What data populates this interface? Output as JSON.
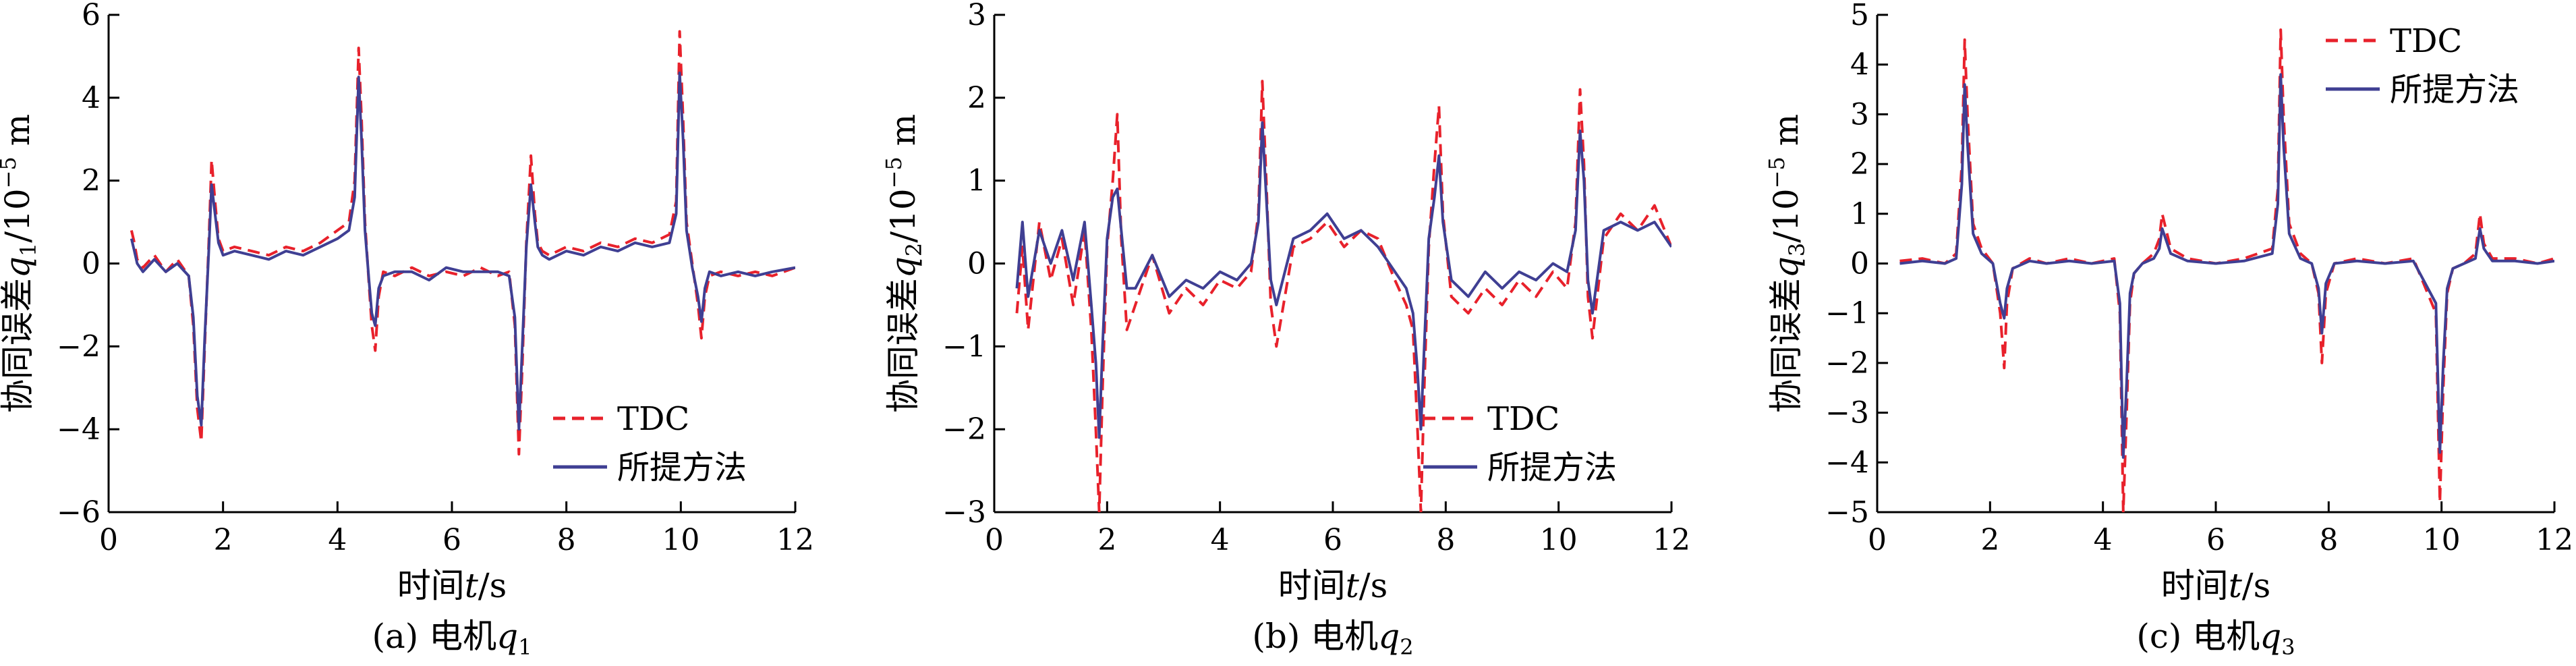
{
  "chart_data": [
    {
      "type": "line",
      "ylabel_main": "协同误差",
      "ylabel_var": "q",
      "ylabel_sub": "1",
      "ylabel_unit": "/10",
      "ylabel_exp": "−5",
      "ylabel_tail": " m",
      "xlabel_main": "时间",
      "xlabel_var": "t",
      "xlabel_unit": "/s",
      "caption_prefix": "(a) 电机",
      "caption_var": "q",
      "caption_sub": "1",
      "xlim": [
        0,
        12
      ],
      "ylim": [
        -6,
        6
      ],
      "xticks": [
        0,
        2,
        4,
        6,
        8,
        10,
        12
      ],
      "yticks": [
        -6,
        -4,
        -2,
        0,
        2,
        4,
        6
      ],
      "xtick_labels": [
        "0",
        "2",
        "4",
        "6",
        "8",
        "10",
        "12"
      ],
      "ytick_labels": [
        "−6",
        "−4",
        "−2",
        "0",
        "2",
        "4",
        "6"
      ],
      "legend_position": "bottom-right",
      "series": [
        {
          "name": "TDC",
          "color": "#e8212b",
          "dash": "dashed",
          "x": [
            0.4,
            0.45,
            0.5,
            0.6,
            0.8,
            1.0,
            1.2,
            1.4,
            1.48,
            1.55,
            1.62,
            1.68,
            1.75,
            1.8,
            1.86,
            1.92,
            2.0,
            2.2,
            2.5,
            2.8,
            3.1,
            3.4,
            3.7,
            4.0,
            4.2,
            4.3,
            4.37,
            4.42,
            4.48,
            4.55,
            4.6,
            4.66,
            4.72,
            4.8,
            5.0,
            5.3,
            5.6,
            5.9,
            6.2,
            6.5,
            6.8,
            7.0,
            7.1,
            7.17,
            7.23,
            7.3,
            7.38,
            7.45,
            7.5,
            7.58,
            7.7,
            8.0,
            8.3,
            8.6,
            8.9,
            9.2,
            9.5,
            9.8,
            9.92,
            9.98,
            10.04,
            10.1,
            10.2,
            10.3,
            10.36,
            10.42,
            10.5,
            10.7,
            11.0,
            11.3,
            11.6,
            12.0
          ],
          "y": [
            0.8,
            0.5,
            0.1,
            -0.1,
            0.2,
            -0.2,
            0.1,
            -0.3,
            -1.5,
            -3.5,
            -4.3,
            -2.0,
            0.5,
            2.5,
            1.5,
            0.6,
            0.3,
            0.4,
            0.3,
            0.2,
            0.4,
            0.3,
            0.5,
            0.8,
            1.0,
            2.0,
            5.2,
            3.5,
            1.0,
            -0.5,
            -1.5,
            -2.1,
            -0.8,
            -0.2,
            -0.3,
            -0.1,
            -0.3,
            -0.2,
            -0.3,
            -0.1,
            -0.3,
            -0.2,
            -1.5,
            -4.6,
            -2.5,
            0.5,
            2.6,
            1.2,
            0.5,
            0.3,
            0.2,
            0.4,
            0.3,
            0.5,
            0.4,
            0.6,
            0.5,
            0.7,
            1.5,
            5.6,
            3.5,
            1.0,
            0.0,
            -1.0,
            -1.8,
            -0.8,
            -0.3,
            -0.2,
            -0.3,
            -0.2,
            -0.3,
            -0.1
          ]
        },
        {
          "name": "所提方法",
          "color": "#3f3f93",
          "dash": "solid",
          "x": [
            0.4,
            0.45,
            0.5,
            0.6,
            0.8,
            1.0,
            1.2,
            1.4,
            1.48,
            1.55,
            1.62,
            1.68,
            1.75,
            1.8,
            1.86,
            1.92,
            2.0,
            2.2,
            2.5,
            2.8,
            3.1,
            3.4,
            3.7,
            4.0,
            4.2,
            4.3,
            4.37,
            4.42,
            4.48,
            4.55,
            4.6,
            4.66,
            4.72,
            4.8,
            5.0,
            5.3,
            5.6,
            5.9,
            6.2,
            6.5,
            6.8,
            7.0,
            7.1,
            7.17,
            7.23,
            7.3,
            7.38,
            7.45,
            7.5,
            7.58,
            7.7,
            8.0,
            8.3,
            8.6,
            8.9,
            9.2,
            9.5,
            9.8,
            9.92,
            9.98,
            10.04,
            10.1,
            10.2,
            10.3,
            10.36,
            10.42,
            10.5,
            10.7,
            11.0,
            11.3,
            11.6,
            12.0
          ],
          "y": [
            0.6,
            0.3,
            0.0,
            -0.2,
            0.1,
            -0.2,
            0.0,
            -0.3,
            -1.3,
            -3.2,
            -3.9,
            -1.8,
            0.3,
            1.9,
            1.2,
            0.5,
            0.2,
            0.3,
            0.2,
            0.1,
            0.3,
            0.2,
            0.4,
            0.6,
            0.8,
            1.6,
            4.5,
            3.0,
            0.8,
            -0.4,
            -1.2,
            -1.5,
            -0.6,
            -0.3,
            -0.2,
            -0.2,
            -0.4,
            -0.1,
            -0.2,
            -0.2,
            -0.2,
            -0.3,
            -1.3,
            -4.0,
            -2.0,
            0.4,
            1.9,
            1.0,
            0.4,
            0.2,
            0.1,
            0.3,
            0.2,
            0.4,
            0.3,
            0.5,
            0.4,
            0.5,
            1.2,
            4.6,
            3.0,
            0.8,
            -0.1,
            -0.8,
            -1.4,
            -0.6,
            -0.2,
            -0.3,
            -0.2,
            -0.3,
            -0.2,
            -0.1
          ]
        }
      ]
    },
    {
      "type": "line",
      "ylabel_main": "协同误差",
      "ylabel_var": "q",
      "ylabel_sub": "2",
      "ylabel_unit": "/10",
      "ylabel_exp": "−5",
      "ylabel_tail": " m",
      "xlabel_main": "时间",
      "xlabel_var": "t",
      "xlabel_unit": "/s",
      "caption_prefix": "(b) 电机",
      "caption_var": "q",
      "caption_sub": "2",
      "xlim": [
        0,
        12
      ],
      "ylim": [
        -3,
        3
      ],
      "xticks": [
        0,
        2,
        4,
        6,
        8,
        10,
        12
      ],
      "yticks": [
        -3,
        -2,
        -1,
        0,
        1,
        2,
        3
      ],
      "xtick_labels": [
        "0",
        "2",
        "4",
        "6",
        "8",
        "10",
        "12"
      ],
      "ytick_labels": [
        "−3",
        "−2",
        "−1",
        "0",
        "1",
        "2",
        "3"
      ],
      "legend_position": "bottom-right",
      "series": [
        {
          "name": "TDC",
          "color": "#e8212b",
          "dash": "dashed",
          "x": [
            0.4,
            0.5,
            0.6,
            0.8,
            1.0,
            1.2,
            1.4,
            1.6,
            1.72,
            1.8,
            1.86,
            1.92,
            2.0,
            2.1,
            2.18,
            2.25,
            2.35,
            2.5,
            2.8,
            3.1,
            3.4,
            3.7,
            4.0,
            4.3,
            4.55,
            4.68,
            4.75,
            4.82,
            4.9,
            5.0,
            5.3,
            5.6,
            5.9,
            6.2,
            6.5,
            6.8,
            7.1,
            7.3,
            7.42,
            7.5,
            7.56,
            7.62,
            7.7,
            7.8,
            7.88,
            7.95,
            8.1,
            8.4,
            8.7,
            9.0,
            9.3,
            9.6,
            9.9,
            10.15,
            10.3,
            10.38,
            10.45,
            10.52,
            10.6,
            10.8,
            11.1,
            11.4,
            11.7,
            12.0
          ],
          "y": [
            -0.6,
            0.2,
            -0.8,
            0.5,
            -0.2,
            0.3,
            -0.5,
            0.4,
            -0.8,
            -2.0,
            -3.0,
            -1.5,
            0.2,
            1.0,
            1.8,
            0.3,
            -0.8,
            -0.5,
            0.1,
            -0.6,
            -0.3,
            -0.5,
            -0.2,
            -0.3,
            -0.1,
            0.6,
            2.2,
            1.0,
            -0.5,
            -1.0,
            0.2,
            0.3,
            0.5,
            0.2,
            0.4,
            0.3,
            -0.2,
            -0.5,
            -0.8,
            -2.0,
            -3.0,
            -1.5,
            0.2,
            1.2,
            1.9,
            0.6,
            -0.4,
            -0.6,
            -0.3,
            -0.5,
            -0.2,
            -0.4,
            -0.1,
            -0.3,
            0.5,
            2.1,
            1.2,
            -0.4,
            -0.9,
            0.3,
            0.6,
            0.4,
            0.7,
            0.2
          ]
        },
        {
          "name": "所提方法",
          "color": "#3f3f93",
          "dash": "solid",
          "x": [
            0.4,
            0.5,
            0.6,
            0.8,
            1.0,
            1.2,
            1.4,
            1.6,
            1.72,
            1.8,
            1.86,
            1.92,
            2.0,
            2.1,
            2.18,
            2.25,
            2.35,
            2.5,
            2.8,
            3.1,
            3.4,
            3.7,
            4.0,
            4.3,
            4.55,
            4.68,
            4.75,
            4.82,
            4.9,
            5.0,
            5.3,
            5.6,
            5.9,
            6.2,
            6.5,
            6.8,
            7.1,
            7.3,
            7.42,
            7.5,
            7.56,
            7.62,
            7.7,
            7.8,
            7.88,
            7.95,
            8.1,
            8.4,
            8.7,
            9.0,
            9.3,
            9.6,
            9.9,
            10.15,
            10.3,
            10.38,
            10.45,
            10.52,
            10.6,
            10.8,
            11.1,
            11.4,
            11.7,
            12.0
          ],
          "y": [
            -0.3,
            0.5,
            -0.4,
            0.4,
            0.0,
            0.4,
            -0.2,
            0.5,
            -0.5,
            -1.2,
            -2.1,
            -1.0,
            0.3,
            0.8,
            0.9,
            0.4,
            -0.3,
            -0.3,
            0.1,
            -0.4,
            -0.2,
            -0.3,
            -0.1,
            -0.2,
            0.0,
            0.5,
            1.7,
            0.8,
            -0.2,
            -0.5,
            0.3,
            0.4,
            0.6,
            0.3,
            0.4,
            0.2,
            -0.1,
            -0.3,
            -0.6,
            -1.3,
            -2.0,
            -1.0,
            0.3,
            0.8,
            1.3,
            0.5,
            -0.2,
            -0.4,
            -0.1,
            -0.3,
            -0.1,
            -0.2,
            0.0,
            -0.1,
            0.4,
            1.6,
            1.0,
            -0.2,
            -0.6,
            0.4,
            0.5,
            0.4,
            0.5,
            0.2
          ]
        }
      ]
    },
    {
      "type": "line",
      "ylabel_main": "协同误差",
      "ylabel_var": "q",
      "ylabel_sub": "3",
      "ylabel_unit": "/10",
      "ylabel_exp": "−5",
      "ylabel_tail": " m",
      "xlabel_main": "时间",
      "xlabel_var": "t",
      "xlabel_unit": "/s",
      "caption_prefix": "(c) 电机",
      "caption_var": "q",
      "caption_sub": "3",
      "xlim": [
        0,
        12
      ],
      "ylim": [
        -5,
        5
      ],
      "xticks": [
        0,
        2,
        4,
        6,
        8,
        10,
        12
      ],
      "yticks": [
        -5,
        -4,
        -3,
        -2,
        -1,
        0,
        1,
        2,
        3,
        4,
        5
      ],
      "xtick_labels": [
        "0",
        "2",
        "4",
        "6",
        "8",
        "10",
        "12"
      ],
      "ytick_labels": [
        "−5",
        "−4",
        "−3",
        "−2",
        "−1",
        "0",
        "1",
        "2",
        "3",
        "4",
        "5"
      ],
      "legend_position": "top-right",
      "series": [
        {
          "name": "TDC",
          "color": "#e8212b",
          "dash": "dashed",
          "x": [
            0.4,
            0.8,
            1.2,
            1.4,
            1.5,
            1.55,
            1.6,
            1.7,
            1.85,
            2.05,
            2.18,
            2.25,
            2.3,
            2.4,
            2.7,
            3.0,
            3.4,
            3.8,
            4.2,
            4.3,
            4.36,
            4.42,
            4.48,
            4.55,
            4.7,
            4.9,
            5.0,
            5.05,
            5.2,
            5.5,
            6.0,
            6.5,
            7.0,
            7.1,
            7.15,
            7.2,
            7.3,
            7.5,
            7.7,
            7.82,
            7.88,
            7.95,
            8.1,
            8.5,
            9.0,
            9.5,
            9.9,
            9.97,
            10.03,
            10.1,
            10.2,
            10.4,
            10.6,
            10.68,
            10.75,
            10.9,
            11.3,
            11.7,
            12.0
          ],
          "y": [
            0.05,
            0.1,
            0.0,
            0.2,
            2.0,
            4.5,
            3.0,
            0.8,
            0.3,
            0.0,
            -1.0,
            -2.1,
            -0.8,
            -0.1,
            0.1,
            0.0,
            0.1,
            0.0,
            0.1,
            -1.0,
            -5.0,
            -3.0,
            -0.8,
            -0.2,
            0.0,
            0.2,
            0.5,
            1.0,
            0.3,
            0.1,
            0.0,
            0.1,
            0.3,
            1.5,
            4.7,
            3.0,
            0.8,
            0.2,
            0.0,
            -0.6,
            -2.0,
            -0.6,
            0.0,
            0.1,
            0.0,
            0.1,
            -1.0,
            -4.8,
            -2.5,
            -0.6,
            -0.1,
            0.0,
            0.2,
            1.0,
            0.4,
            0.1,
            0.1,
            0.0,
            0.1
          ]
        },
        {
          "name": "所提方法",
          "color": "#3f3f93",
          "dash": "solid",
          "x": [
            0.4,
            0.8,
            1.2,
            1.4,
            1.5,
            1.55,
            1.6,
            1.7,
            1.85,
            2.05,
            2.18,
            2.25,
            2.3,
            2.4,
            2.7,
            3.0,
            3.4,
            3.8,
            4.2,
            4.3,
            4.36,
            4.42,
            4.48,
            4.55,
            4.7,
            4.9,
            5.0,
            5.05,
            5.2,
            5.5,
            6.0,
            6.5,
            7.0,
            7.1,
            7.15,
            7.2,
            7.3,
            7.5,
            7.7,
            7.82,
            7.88,
            7.95,
            8.1,
            8.5,
            9.0,
            9.5,
            9.9,
            9.97,
            10.03,
            10.1,
            10.2,
            10.4,
            10.6,
            10.68,
            10.75,
            10.9,
            11.3,
            11.7,
            12.0
          ],
          "y": [
            0.0,
            0.05,
            0.0,
            0.1,
            1.6,
            3.6,
            2.4,
            0.6,
            0.2,
            0.0,
            -0.8,
            -1.1,
            -0.5,
            -0.1,
            0.05,
            0.0,
            0.05,
            0.0,
            0.05,
            -0.8,
            -3.9,
            -2.4,
            -0.6,
            -0.2,
            0.0,
            0.1,
            0.3,
            0.7,
            0.2,
            0.05,
            0.0,
            0.05,
            0.2,
            1.2,
            3.8,
            2.4,
            0.6,
            0.1,
            0.0,
            -0.5,
            -1.4,
            -0.4,
            0.0,
            0.05,
            0.0,
            0.05,
            -0.8,
            -3.8,
            -2.0,
            -0.5,
            -0.1,
            0.0,
            0.1,
            0.7,
            0.3,
            0.05,
            0.05,
            0.0,
            0.05
          ]
        }
      ]
    }
  ]
}
